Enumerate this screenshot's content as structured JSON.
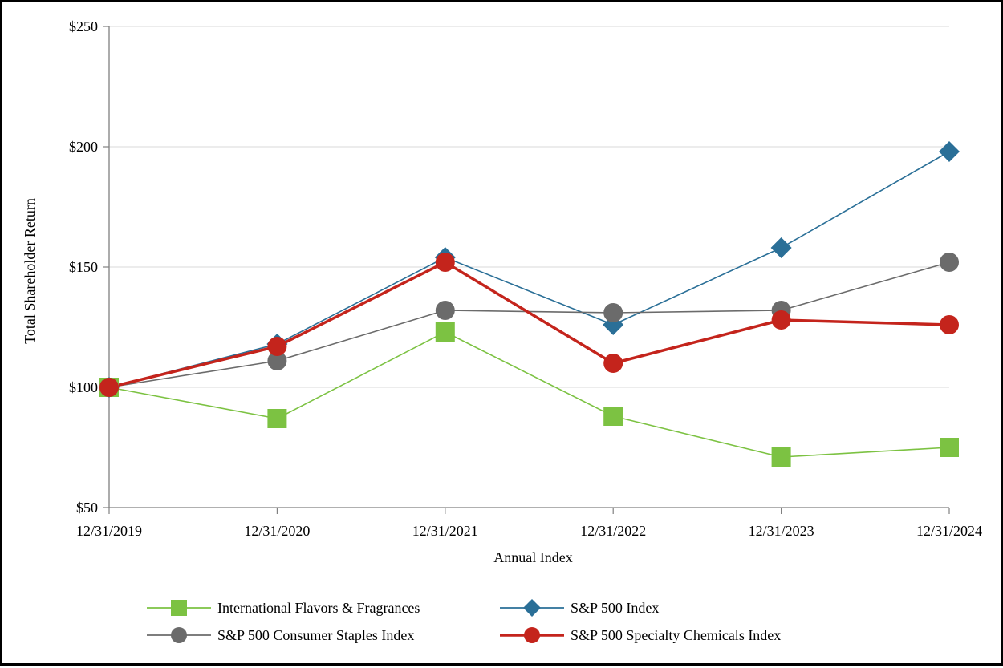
{
  "chart_data": {
    "type": "line",
    "title": "",
    "xlabel": "Annual Index",
    "ylabel": "Total Shareholder Return",
    "categories": [
      "12/31/2019",
      "12/31/2020",
      "12/31/2021",
      "12/31/2022",
      "12/31/2023",
      "12/31/2024"
    ],
    "ylim": [
      50,
      250
    ],
    "yticks": [
      50,
      100,
      150,
      200,
      250
    ],
    "ytick_labels": [
      "$50",
      "$100",
      "$150",
      "$200",
      "$250"
    ],
    "grid": true,
    "legend_position": "bottom",
    "series": [
      {
        "name": "International Flavors & Fragrances",
        "color": "#7cc242",
        "marker": "square",
        "line_weight": "thin",
        "values": [
          100,
          87,
          123,
          88,
          71,
          75
        ]
      },
      {
        "name": "S&P 500 Index",
        "color": "#2a6f97",
        "marker": "diamond",
        "line_weight": "thin",
        "values": [
          100,
          118,
          154,
          126,
          158,
          198
        ]
      },
      {
        "name": "S&P 500 Consumer Staples Index",
        "color": "#6b6b6b",
        "marker": "circle",
        "line_weight": "thin",
        "values": [
          100,
          111,
          132,
          131,
          132,
          152
        ]
      },
      {
        "name": "S&P 500 Specialty Chemicals Index",
        "color": "#c4241c",
        "marker": "circle",
        "line_weight": "thick",
        "values": [
          100,
          117,
          152,
          110,
          128,
          126
        ]
      }
    ]
  }
}
